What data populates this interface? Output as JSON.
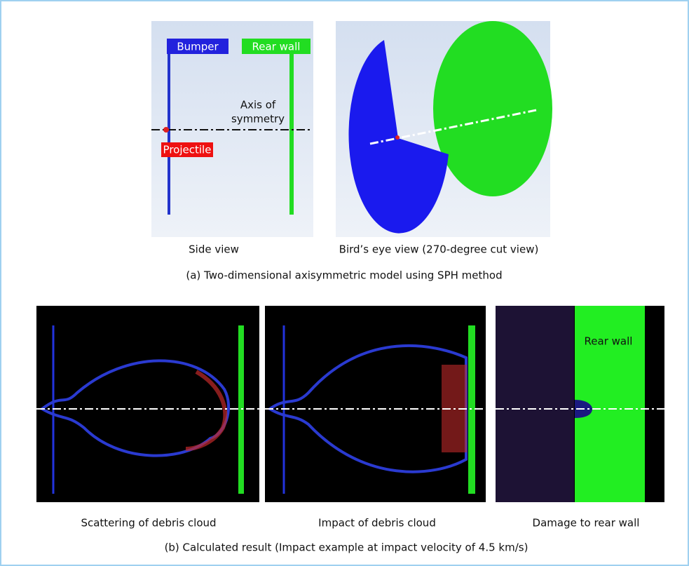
{
  "side_view": {
    "bumper_label": "Bumper",
    "rear_wall_label": "Rear wall",
    "axis_label": [
      "Axis of",
      "symmetry"
    ],
    "projectile_label": "Projectile",
    "caption": "Side view"
  },
  "birds_eye_view": {
    "caption": "Bird’s eye view (270-degree cut view)"
  },
  "part_a_caption": "(a) Two-dimensional axisymmetric model using SPH method",
  "results": [
    {
      "caption": "Scattering of debris cloud"
    },
    {
      "caption": "Impact of debris cloud"
    },
    {
      "caption": "Damage to rear wall",
      "label": "Rear wall"
    }
  ],
  "part_b_caption": "(b) Calculated result (Impact example at impact velocity of 4.5 km/s)"
}
